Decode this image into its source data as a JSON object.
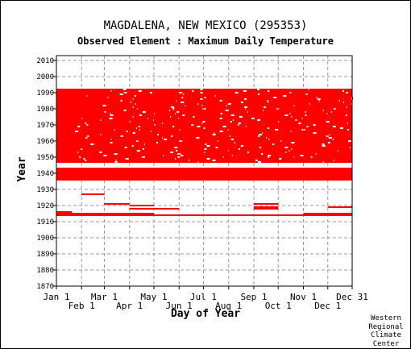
{
  "chart_data": {
    "type": "scatter",
    "title": "MAGDALENA, NEW MEXICO   (295353)",
    "subtitle": "Observed Element : Maximum Daily Temperature",
    "xlabel": "Day of Year",
    "ylabel": "Year",
    "x_ticks_top_row": [
      "Jan 1",
      "Mar 1",
      "May 1",
      "Jul 1",
      "Sep 1",
      "Nov 1",
      "Dec 31"
    ],
    "x_ticks_bottom_row": [
      "Feb 1",
      "Apr 1",
      "Jun 1",
      "Aug 1",
      "Oct 1",
      "Dec 1"
    ],
    "x_tick_days": [
      1,
      32,
      60,
      91,
      121,
      152,
      182,
      213,
      244,
      274,
      305,
      335,
      365
    ],
    "y_ticks": [
      "2010",
      "2000",
      "1990",
      "1980",
      "1970",
      "1960",
      "1950",
      "1940",
      "1930",
      "1920",
      "1910",
      "1900",
      "1890",
      "1880",
      "1870"
    ],
    "ylim": [
      1870,
      2013
    ],
    "xlim": [
      1,
      365
    ],
    "grid": true,
    "marker_color": "#ff0000",
    "dense_period": [
      1947,
      1992
    ],
    "gap_years": [
      1945,
      1946
    ],
    "full_years": [
      1936,
      1937,
      1938,
      1939,
      1940,
      1941,
      1942,
      1943
    ],
    "partial_year_segments": [
      {
        "year": 1927,
        "from_day": 32,
        "to_day": 60
      },
      {
        "year": 1921,
        "from_day": 60,
        "to_day": 91
      },
      {
        "year": 1921,
        "from_day": 244,
        "to_day": 274
      },
      {
        "year": 1920,
        "from_day": 91,
        "to_day": 121
      },
      {
        "year": 1919,
        "from_day": 244,
        "to_day": 274
      },
      {
        "year": 1919,
        "from_day": 335,
        "to_day": 365
      },
      {
        "year": 1918,
        "from_day": 91,
        "to_day": 152
      },
      {
        "year": 1918,
        "from_day": 244,
        "to_day": 274
      },
      {
        "year": 1916,
        "from_day": 1,
        "to_day": 20
      },
      {
        "year": 1915,
        "from_day": 1,
        "to_day": 121
      },
      {
        "year": 1915,
        "from_day": 305,
        "to_day": 365
      },
      {
        "year": 1914,
        "from_day": 1,
        "to_day": 365
      }
    ],
    "site_credit": [
      "Western",
      "Regional",
      "Climate",
      "Center"
    ]
  }
}
